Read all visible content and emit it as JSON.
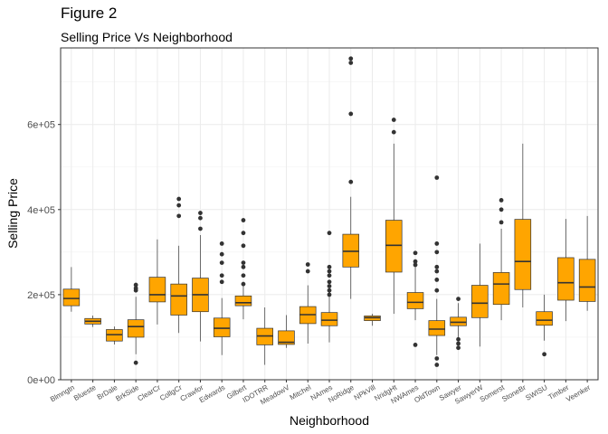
{
  "title": "Figure 2",
  "subtitle": "Selling Price Vs Neighborhood",
  "chart_data": {
    "type": "boxplot",
    "xlabel": "Neighborhood",
    "ylabel": "Selling Price",
    "ylim": [
      0,
      780000
    ],
    "yticks": [
      0,
      200000,
      400000,
      600000
    ],
    "ytick_labels": [
      "0e+00",
      "2e+05",
      "4e+05",
      "6e+05"
    ],
    "box_color": "#FFA500",
    "outlier_color": "#333333",
    "grid": true,
    "categories": [
      "Blmngtn",
      "Blueste",
      "BrDale",
      "BrkSide",
      "ClearCr",
      "CollgCr",
      "Crawfor",
      "Edwards",
      "Gilbert",
      "IDOTRR",
      "MeadowV",
      "Mitchel",
      "NAmes",
      "NoRidge",
      "NPkVill",
      "NridgHt",
      "NWAmes",
      "OldTown",
      "Sawyer",
      "SawyerW",
      "Somerst",
      "StoneBr",
      "SWISU",
      "Timber",
      "Veenker"
    ],
    "boxes": [
      {
        "min": 160000,
        "q1": 174000,
        "median": 191000,
        "q3": 213000,
        "max": 265000,
        "outliers": []
      },
      {
        "min": 124000,
        "q1": 131000,
        "median": 137500,
        "q3": 144000,
        "max": 151000,
        "outliers": []
      },
      {
        "min": 83000,
        "q1": 91000,
        "median": 106000,
        "q3": 118000,
        "max": 125000,
        "outliers": []
      },
      {
        "min": 60000,
        "q1": 100000,
        "median": 125000,
        "q3": 141000,
        "max": 195000,
        "outliers": [
          40000,
          210000,
          215000,
          223000
        ]
      },
      {
        "min": 130000,
        "q1": 183000,
        "median": 200000,
        "q3": 241000,
        "max": 330000,
        "outliers": []
      },
      {
        "min": 110000,
        "q1": 152000,
        "median": 197000,
        "q3": 225000,
        "max": 315000,
        "outliers": [
          385000,
          410000,
          425000
        ]
      },
      {
        "min": 90000,
        "q1": 160000,
        "median": 200000,
        "q3": 239000,
        "max": 340000,
        "outliers": [
          355000,
          380000,
          392000
        ]
      },
      {
        "min": 58000,
        "q1": 101000,
        "median": 121000,
        "q3": 145000,
        "max": 192000,
        "outliers": [
          230000,
          245000,
          275000,
          295000,
          320000
        ]
      },
      {
        "min": 142000,
        "q1": 174000,
        "median": 181000,
        "q3": 197000,
        "max": 230000,
        "outliers": [
          225000,
          245000,
          265000,
          275000,
          315000,
          345000,
          375000
        ]
      },
      {
        "min": 35000,
        "q1": 82000,
        "median": 103000,
        "q3": 121000,
        "max": 170000,
        "outliers": []
      },
      {
        "min": 75000,
        "q1": 83000,
        "median": 88000,
        "q3": 115000,
        "max": 152000,
        "outliers": []
      },
      {
        "min": 85000,
        "q1": 132000,
        "median": 153000,
        "q3": 172000,
        "max": 222000,
        "outliers": [
          255000,
          271000
        ]
      },
      {
        "min": 88000,
        "q1": 127000,
        "median": 140000,
        "q3": 158000,
        "max": 205000,
        "outliers": [
          200000,
          210000,
          220000,
          230000,
          245000,
          255000,
          265000,
          345000
        ]
      },
      {
        "min": 190000,
        "q1": 265000,
        "median": 302000,
        "q3": 342000,
        "max": 430000,
        "outliers": [
          465000,
          625000,
          745000,
          755000
        ]
      },
      {
        "min": 127000,
        "q1": 139000,
        "median": 146000,
        "q3": 150000,
        "max": 155000,
        "outliers": []
      },
      {
        "min": 155000,
        "q1": 253000,
        "median": 316000,
        "q3": 375000,
        "max": 555000,
        "outliers": [
          582000,
          611000
        ]
      },
      {
        "min": 140000,
        "q1": 167000,
        "median": 182000,
        "q3": 205000,
        "max": 268000,
        "outliers": [
          82000,
          270000,
          278000,
          298000
        ]
      },
      {
        "min": 58000,
        "q1": 104000,
        "median": 119000,
        "q3": 139000,
        "max": 190000,
        "outliers": [
          35000,
          50000,
          210000,
          235000,
          255000,
          265000,
          300000,
          320000,
          475000
        ]
      },
      {
        "min": 95000,
        "q1": 127000,
        "median": 135000,
        "q3": 147000,
        "max": 180000,
        "outliers": [
          75000,
          85000,
          95000,
          190000
        ]
      },
      {
        "min": 78000,
        "q1": 146000,
        "median": 180000,
        "q3": 222000,
        "max": 320000,
        "outliers": []
      },
      {
        "min": 140000,
        "q1": 177000,
        "median": 225000,
        "q3": 252000,
        "max": 355000,
        "outliers": [
          370000,
          400000,
          422000
        ]
      },
      {
        "min": 170000,
        "q1": 212000,
        "median": 278000,
        "q3": 377000,
        "max": 555000,
        "outliers": []
      },
      {
        "min": 92000,
        "q1": 128000,
        "median": 140000,
        "q3": 160000,
        "max": 200000,
        "outliers": [
          60000
        ]
      },
      {
        "min": 138000,
        "q1": 187000,
        "median": 228000,
        "q3": 287000,
        "max": 378000,
        "outliers": []
      },
      {
        "min": 162000,
        "q1": 184000,
        "median": 218000,
        "q3": 283000,
        "max": 385000,
        "outliers": []
      }
    ]
  }
}
